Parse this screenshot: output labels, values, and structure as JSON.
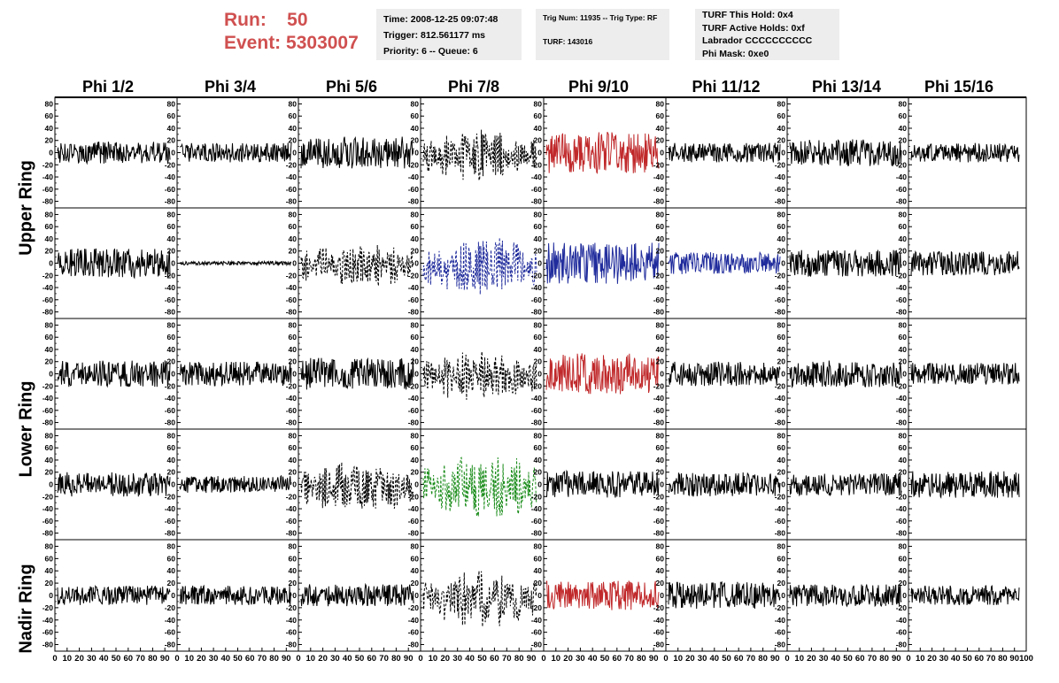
{
  "header": {
    "run_label": "Run:",
    "run_value": "50",
    "event_label": "Event:",
    "event_value": "5303007"
  },
  "info": {
    "time": "Time: 2008-12-25 09:07:48",
    "trigger": "Trigger: 812.561177 ms",
    "priority": "Priority: 6 -- Queue: 6",
    "trig": "Trig Num: 11935 -- Trig Type: RF",
    "turf": "TURF: 143016",
    "turf_this_hold": "TURF This Hold: 0x4",
    "turf_active_holds": "TURF Active Holds: 0xf",
    "labrador": "Labrador CCCCCCCCCC",
    "phi_mask": "Phi Mask: 0xe0"
  },
  "chart_data": {
    "type": "line",
    "columns": [
      "Phi 1/2",
      "Phi 3/4",
      "Phi 5/6",
      "Phi 7/8",
      "Phi 9/10",
      "Phi 11/12",
      "Phi 13/14",
      "Phi 15/16"
    ],
    "ring_labels": [
      "Upper Ring",
      "Lower Ring",
      "Nadir Ring"
    ],
    "y_ticks": [
      80,
      60,
      40,
      20,
      0,
      -20,
      -40,
      -60,
      -80
    ],
    "x_ticks": [
      0,
      10,
      20,
      30,
      40,
      50,
      60,
      70,
      80,
      90,
      100
    ],
    "xlim": [
      0,
      100
    ],
    "ylim": [
      -85,
      85
    ],
    "colors": {
      "black": "#000000",
      "red": "#c0282a",
      "blue": "#202c9c",
      "green": "#1a8c1a"
    },
    "panels": [
      [
        {
          "color": "black",
          "style": "solid",
          "amp": 18,
          "seed": 1
        },
        {
          "color": "black",
          "style": "solid",
          "amp": 16,
          "seed": 2
        },
        {
          "color": "black",
          "style": "solid",
          "amp": 26,
          "seed": 3
        },
        {
          "color": "black",
          "style": "dashed",
          "amp": 36,
          "seed": 4
        },
        {
          "color": "red",
          "style": "solid",
          "amp": 34,
          "seed": 5
        },
        {
          "color": "black",
          "style": "solid",
          "amp": 16,
          "seed": 6
        },
        {
          "color": "black",
          "style": "solid",
          "amp": 22,
          "seed": 7
        },
        {
          "color": "black",
          "style": "solid",
          "amp": 16,
          "seed": 8
        }
      ],
      [
        {
          "color": "black",
          "style": "solid",
          "amp": 24,
          "seed": 9
        },
        {
          "color": "black",
          "style": "solid",
          "amp": 3,
          "seed": 10
        },
        {
          "color": "black",
          "style": "dashed",
          "amp": 34,
          "seed": 11
        },
        {
          "color": "blue",
          "style": "dashed",
          "amp": 44,
          "seed": 12
        },
        {
          "color": "blue",
          "style": "solid",
          "amp": 34,
          "seed": 13
        },
        {
          "color": "blue",
          "style": "solid",
          "amp": 18,
          "seed": 14
        },
        {
          "color": "black",
          "style": "solid",
          "amp": 22,
          "seed": 15
        },
        {
          "color": "black",
          "style": "solid",
          "amp": 20,
          "seed": 16
        }
      ],
      [
        {
          "color": "black",
          "style": "solid",
          "amp": 22,
          "seed": 17
        },
        {
          "color": "black",
          "style": "solid",
          "amp": 20,
          "seed": 18
        },
        {
          "color": "black",
          "style": "solid",
          "amp": 26,
          "seed": 19
        },
        {
          "color": "black",
          "style": "dashed",
          "amp": 36,
          "seed": 20
        },
        {
          "color": "red",
          "style": "solid",
          "amp": 34,
          "seed": 21
        },
        {
          "color": "black",
          "style": "solid",
          "amp": 20,
          "seed": 22
        },
        {
          "color": "black",
          "style": "solid",
          "amp": 22,
          "seed": 23
        },
        {
          "color": "black",
          "style": "solid",
          "amp": 18,
          "seed": 24
        }
      ],
      [
        {
          "color": "black",
          "style": "solid",
          "amp": 20,
          "seed": 25
        },
        {
          "color": "black",
          "style": "solid",
          "amp": 14,
          "seed": 26
        },
        {
          "color": "black",
          "style": "dashed",
          "amp": 38,
          "seed": 27
        },
        {
          "color": "green",
          "style": "dashed",
          "amp": 50,
          "seed": 28
        },
        {
          "color": "black",
          "style": "solid",
          "amp": 22,
          "seed": 29
        },
        {
          "color": "black",
          "style": "solid",
          "amp": 20,
          "seed": 30
        },
        {
          "color": "black",
          "style": "solid",
          "amp": 18,
          "seed": 31
        },
        {
          "color": "black",
          "style": "solid",
          "amp": 22,
          "seed": 32
        }
      ],
      [
        {
          "color": "black",
          "style": "solid",
          "amp": 16,
          "seed": 33
        },
        {
          "color": "black",
          "style": "solid",
          "amp": 16,
          "seed": 34
        },
        {
          "color": "black",
          "style": "solid",
          "amp": 18,
          "seed": 35
        },
        {
          "color": "black",
          "style": "dashed",
          "amp": 40,
          "seed": 36
        },
        {
          "color": "red",
          "style": "solid",
          "amp": 24,
          "seed": 37
        },
        {
          "color": "black",
          "style": "solid",
          "amp": 22,
          "seed": 38
        },
        {
          "color": "black",
          "style": "solid",
          "amp": 18,
          "seed": 39
        },
        {
          "color": "black",
          "style": "solid",
          "amp": 16,
          "seed": 40
        }
      ]
    ]
  }
}
